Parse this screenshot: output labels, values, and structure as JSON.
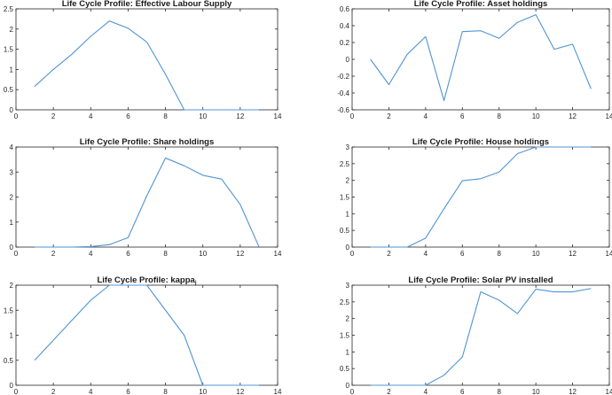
{
  "chart_data": [
    {
      "type": "line",
      "title": "Life Cycle Profile: Effective Labour Supply",
      "xlim": [
        0,
        14
      ],
      "ylim": [
        0,
        2.5
      ],
      "xticks": [
        0,
        2,
        4,
        6,
        8,
        10,
        12,
        14
      ],
      "yticks": [
        0,
        0.5,
        1,
        1.5,
        2,
        2.5
      ],
      "yticklabels": [
        "0",
        "0.5",
        "1",
        "1.5",
        "2",
        "2.5"
      ],
      "x": [
        1,
        2,
        3,
        4,
        5,
        6,
        7,
        8,
        9,
        10,
        11,
        12,
        13
      ],
      "series": [
        {
          "values": [
            0.58,
            1.0,
            1.38,
            1.82,
            2.2,
            2.02,
            1.68,
            0.88,
            0,
            0,
            0,
            0,
            0
          ]
        }
      ],
      "line_color": "#4f94d4",
      "grid": false
    },
    {
      "type": "line",
      "title": "Life Cycle Profile: Asset holdings",
      "xlim": [
        0,
        14
      ],
      "ylim": [
        -0.6,
        0.6
      ],
      "xticks": [
        0,
        2,
        4,
        6,
        8,
        10,
        12,
        14
      ],
      "yticks": [
        -0.6,
        -0.4,
        -0.2,
        0,
        0.2,
        0.4,
        0.6
      ],
      "yticklabels": [
        "-0.6",
        "-0.4",
        "-0.2",
        "0",
        "0.2",
        "0.4",
        "0.6"
      ],
      "x": [
        1,
        2,
        3,
        4,
        5,
        6,
        7,
        8,
        9,
        10,
        11,
        12,
        13
      ],
      "series": [
        {
          "values": [
            0.0,
            -0.3,
            0.06,
            0.27,
            -0.49,
            0.33,
            0.34,
            0.25,
            0.44,
            0.53,
            0.12,
            0.18,
            -0.35
          ]
        }
      ],
      "line_color": "#4f94d4",
      "grid": false
    },
    {
      "type": "line",
      "title": "Life Cycle Profile: Share holdings",
      "xlim": [
        0,
        14
      ],
      "ylim": [
        0,
        4
      ],
      "xticks": [
        0,
        2,
        4,
        6,
        8,
        10,
        12,
        14
      ],
      "yticks": [
        0,
        1,
        2,
        3,
        4
      ],
      "yticklabels": [
        "0",
        "1",
        "2",
        "3",
        "4"
      ],
      "x": [
        1,
        2,
        3,
        4,
        5,
        6,
        7,
        8,
        9,
        10,
        11,
        12,
        13
      ],
      "series": [
        {
          "values": [
            0,
            0,
            0,
            0.02,
            0.1,
            0.38,
            2.05,
            3.56,
            3.25,
            2.87,
            2.72,
            1.7,
            0.02
          ]
        }
      ],
      "line_color": "#4f94d4",
      "grid": false
    },
    {
      "type": "line",
      "title": "Life Cycle Profile: House holdings",
      "xlim": [
        0,
        14
      ],
      "ylim": [
        0,
        3
      ],
      "xticks": [
        0,
        2,
        4,
        6,
        8,
        10,
        12,
        14
      ],
      "yticks": [
        0,
        0.5,
        1,
        1.5,
        2,
        2.5,
        3
      ],
      "yticklabels": [
        "0",
        "0.5",
        "1",
        "1.5",
        "2",
        "2.5",
        "3"
      ],
      "x": [
        1,
        2,
        3,
        4,
        5,
        6,
        7,
        8,
        9,
        10,
        11,
        12,
        13
      ],
      "series": [
        {
          "values": [
            0,
            0,
            0,
            0.27,
            1.15,
            1.99,
            2.05,
            2.25,
            2.8,
            3.0,
            3.0,
            3.0,
            3.0
          ]
        }
      ],
      "line_color": "#4f94d4",
      "grid": false
    },
    {
      "type": "line",
      "title": "Life Cycle Profile: kappa",
      "title_subscript": "j",
      "xlim": [
        0,
        14
      ],
      "ylim": [
        0,
        2
      ],
      "xticks": [
        0,
        2,
        4,
        6,
        8,
        10,
        12,
        14
      ],
      "yticks": [
        0,
        0.5,
        1,
        1.5,
        2
      ],
      "yticklabels": [
        "0",
        "0.5",
        "1",
        "1.5",
        "2"
      ],
      "x": [
        1,
        2,
        3,
        4,
        5,
        6,
        7,
        8,
        9,
        10,
        11,
        12,
        13
      ],
      "series": [
        {
          "values": [
            0.5,
            0.9,
            1.3,
            1.7,
            2.0,
            2.0,
            2.0,
            1.5,
            1.0,
            0,
            0,
            0,
            0
          ]
        }
      ],
      "line_color": "#4f94d4",
      "grid": false
    },
    {
      "type": "line",
      "title": "Life Cycle Profile: Solar PV installed",
      "xlim": [
        0,
        14
      ],
      "ylim": [
        0,
        3
      ],
      "xticks": [
        0,
        2,
        4,
        6,
        8,
        10,
        12,
        14
      ],
      "yticks": [
        0,
        0.5,
        1,
        1.5,
        2,
        2.5,
        3
      ],
      "yticklabels": [
        "0",
        "0.5",
        "1",
        "1.5",
        "2",
        "2.5",
        "3"
      ],
      "x": [
        1,
        2,
        3,
        4,
        5,
        6,
        7,
        8,
        9,
        10,
        11,
        12,
        13
      ],
      "series": [
        {
          "values": [
            0,
            0,
            0,
            0,
            0.3,
            0.85,
            2.8,
            2.55,
            2.15,
            2.88,
            2.8,
            2.8,
            2.9
          ]
        }
      ],
      "line_color": "#4f94d4",
      "grid": false
    }
  ]
}
